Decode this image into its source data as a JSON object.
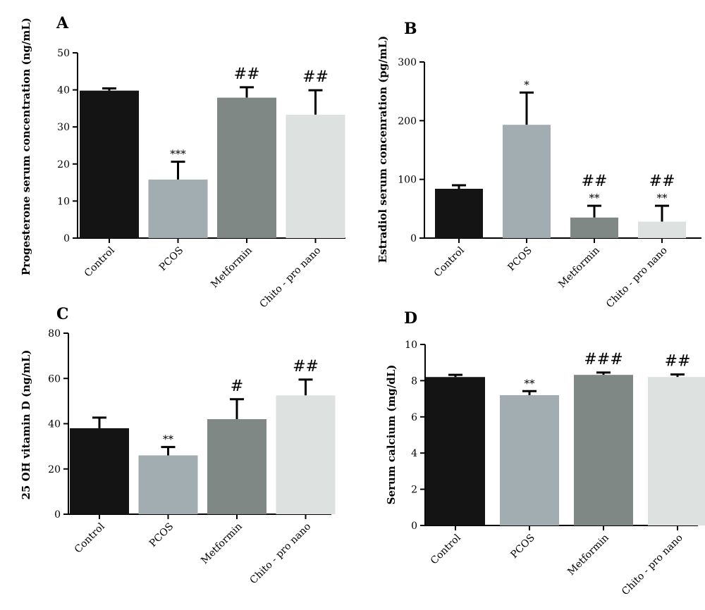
{
  "chart_data": [
    {
      "type": "bar",
      "panel": "A",
      "ylabel": "Progesterone serum concentration (ng/mL)",
      "ylim": [
        0,
        50
      ],
      "yticks": [
        0,
        10,
        20,
        30,
        40,
        50
      ],
      "categories": [
        "Control",
        "PCOS",
        "Metformin",
        "Chito - pro nano"
      ],
      "values": [
        39.8,
        15.8,
        37.9,
        33.3
      ],
      "errors": [
        0.6,
        4.8,
        2.8,
        6.6
      ],
      "significance": [
        "",
        "***",
        "##",
        "##"
      ],
      "colors": [
        "#141414",
        "#a2adb1",
        "#7f8884",
        "#dde1df"
      ]
    },
    {
      "type": "bar",
      "panel": "B",
      "ylabel": "Estradiol serum concenration (pg/mL)",
      "ylim": [
        0,
        300
      ],
      "yticks": [
        0,
        100,
        200,
        300
      ],
      "categories": [
        "Control",
        "PCOS",
        "Metformin",
        "Chito - pro nano"
      ],
      "values": [
        84,
        193,
        35,
        28
      ],
      "errors": [
        6,
        55,
        20,
        27
      ],
      "significance": [
        "",
        "*",
        "**",
        "**"
      ],
      "significance2": [
        "",
        "",
        "##",
        "##"
      ],
      "colors": [
        "#141414",
        "#a2adb1",
        "#7f8884",
        "#dde1df"
      ]
    },
    {
      "type": "bar",
      "panel": "C",
      "ylabel": "25 OH vitamin D (ng/mL)",
      "ylim": [
        0,
        80
      ],
      "yticks": [
        0,
        20,
        40,
        60,
        80
      ],
      "categories": [
        "Control",
        "PCOS",
        "Metformin",
        "Chito - pro nano"
      ],
      "values": [
        38,
        26,
        42,
        52.5
      ],
      "errors": [
        4.7,
        3.7,
        8.8,
        7
      ],
      "significance": [
        "",
        "**",
        "#",
        "##"
      ],
      "colors": [
        "#141414",
        "#a2adb1",
        "#7f8884",
        "#dde1df"
      ]
    },
    {
      "type": "bar",
      "panel": "D",
      "ylabel": "Serum calcium (mg/dL)",
      "ylim": [
        0,
        10
      ],
      "yticks": [
        0,
        2,
        4,
        6,
        8,
        10
      ],
      "categories": [
        "Control",
        "PCOS",
        "Metformin",
        "Chito - pro nano"
      ],
      "values": [
        8.2,
        7.2,
        8.32,
        8.2
      ],
      "errors": [
        0.12,
        0.22,
        0.13,
        0.14
      ],
      "significance": [
        "",
        "**",
        "###",
        "##"
      ],
      "colors": [
        "#141414",
        "#a2adb1",
        "#7f8884",
        "#dde1df"
      ]
    }
  ]
}
